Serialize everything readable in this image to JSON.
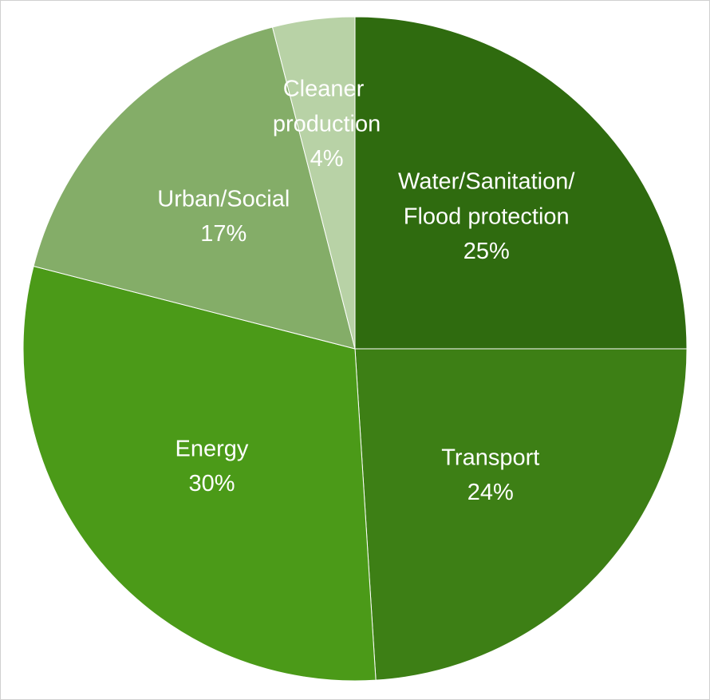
{
  "chart_data": {
    "type": "pie",
    "categories": [
      "Water/Sanitation/Flood protection",
      "Transport",
      "Energy",
      "Urban/Social",
      "Cleaner production"
    ],
    "values": [
      25,
      24,
      30,
      17,
      4
    ],
    "value_labels": [
      "25%",
      "24%",
      "30%",
      "17%",
      "4%"
    ],
    "colors": [
      "#2f6b0f",
      "#3d7f15",
      "#4b9a18",
      "#84ad68",
      "#b8d2a6"
    ]
  }
}
